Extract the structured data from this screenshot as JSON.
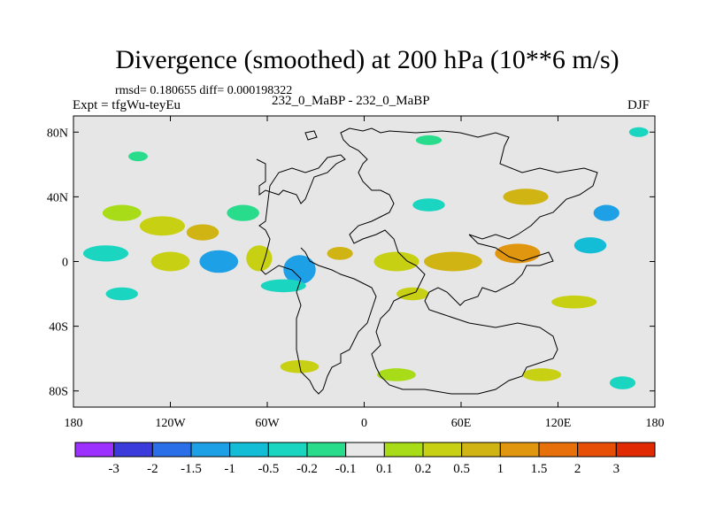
{
  "chart_data": {
    "type": "heatmap",
    "title": "Divergence (smoothed) at 200 hPa (10**6 m/s)",
    "stats": "rmsd= 0.180655  diff= 0.000198322",
    "expt": "Expt = tfgWu-teyEu",
    "runs": "232_0_MaBP - 232_0_MaBP",
    "season": "DJF",
    "x_range": [
      -180,
      180
    ],
    "y_range": [
      -90,
      90
    ],
    "x_ticks": [
      {
        "value": -180,
        "label": "180"
      },
      {
        "value": -120,
        "label": "120W"
      },
      {
        "value": -60,
        "label": "60W"
      },
      {
        "value": 0,
        "label": "0"
      },
      {
        "value": 60,
        "label": "60E"
      },
      {
        "value": 120,
        "label": "120E"
      },
      {
        "value": 180,
        "label": "180"
      }
    ],
    "y_ticks": [
      {
        "value": 80,
        "label": "80N"
      },
      {
        "value": 40,
        "label": "40N"
      },
      {
        "value": 0,
        "label": "0"
      },
      {
        "value": -40,
        "label": "40S"
      },
      {
        "value": -80,
        "label": "80S"
      }
    ],
    "colorbar": {
      "colors": [
        "#9b30ff",
        "#3b3bdb",
        "#2b6fe8",
        "#1ea0e6",
        "#14bdd6",
        "#1ad6c0",
        "#28dc8c",
        "#e8e8e8",
        "#a8dc18",
        "#c8d014",
        "#d0b414",
        "#e0960f",
        "#e8700a",
        "#e84f06",
        "#e02a02"
      ],
      "labels": [
        "-3",
        "-2",
        "-1.5",
        "-1",
        "-0.5",
        "-0.2",
        "-0.1",
        "0.1",
        "0.2",
        "0.5",
        "1",
        "1.5",
        "2",
        "3"
      ]
    },
    "features": [
      {
        "lon": -150,
        "lat": 30,
        "rx": 12,
        "ry": 5,
        "level": 8
      },
      {
        "lon": -125,
        "lat": 22,
        "rx": 14,
        "ry": 6,
        "level": 9
      },
      {
        "lon": -100,
        "lat": 18,
        "rx": 10,
        "ry": 5,
        "level": 10
      },
      {
        "lon": -75,
        "lat": 30,
        "rx": 10,
        "ry": 5,
        "level": 6
      },
      {
        "lon": -160,
        "lat": 5,
        "rx": 14,
        "ry": 5,
        "level": 5
      },
      {
        "lon": -120,
        "lat": 0,
        "rx": 12,
        "ry": 6,
        "level": 9
      },
      {
        "lon": -90,
        "lat": 0,
        "rx": 12,
        "ry": 7,
        "level": 3
      },
      {
        "lon": -65,
        "lat": 2,
        "rx": 8,
        "ry": 8,
        "level": 9
      },
      {
        "lon": -40,
        "lat": -5,
        "rx": 10,
        "ry": 9,
        "level": 3
      },
      {
        "lon": -15,
        "lat": 5,
        "rx": 8,
        "ry": 4,
        "level": 10
      },
      {
        "lon": 20,
        "lat": 0,
        "rx": 14,
        "ry": 6,
        "level": 9
      },
      {
        "lon": 55,
        "lat": 0,
        "rx": 18,
        "ry": 6,
        "level": 10
      },
      {
        "lon": 95,
        "lat": 5,
        "rx": 14,
        "ry": 6,
        "level": 11
      },
      {
        "lon": 140,
        "lat": 10,
        "rx": 10,
        "ry": 5,
        "level": 4
      },
      {
        "lon": 150,
        "lat": 30,
        "rx": 8,
        "ry": 5,
        "level": 3
      },
      {
        "lon": 100,
        "lat": 40,
        "rx": 14,
        "ry": 5,
        "level": 10
      },
      {
        "lon": 40,
        "lat": 35,
        "rx": 10,
        "ry": 4,
        "level": 5
      },
      {
        "lon": -50,
        "lat": -15,
        "rx": 14,
        "ry": 4,
        "level": 5
      },
      {
        "lon": 30,
        "lat": -20,
        "rx": 10,
        "ry": 4,
        "level": 9
      },
      {
        "lon": 130,
        "lat": -25,
        "rx": 14,
        "ry": 4,
        "level": 9
      },
      {
        "lon": -150,
        "lat": -20,
        "rx": 10,
        "ry": 4,
        "level": 5
      },
      {
        "lon": -40,
        "lat": -65,
        "rx": 12,
        "ry": 4,
        "level": 9
      },
      {
        "lon": 20,
        "lat": -70,
        "rx": 12,
        "ry": 4,
        "level": 8
      },
      {
        "lon": 110,
        "lat": -70,
        "rx": 12,
        "ry": 4,
        "level": 9
      },
      {
        "lon": 160,
        "lat": -75,
        "rx": 8,
        "ry": 4,
        "level": 5
      },
      {
        "lon": -140,
        "lat": 65,
        "rx": 6,
        "ry": 3,
        "level": 6
      },
      {
        "lon": 40,
        "lat": 75,
        "rx": 8,
        "ry": 3,
        "level": 6
      },
      {
        "lon": 170,
        "lat": 80,
        "rx": 6,
        "ry": 3,
        "level": 5
      }
    ]
  }
}
